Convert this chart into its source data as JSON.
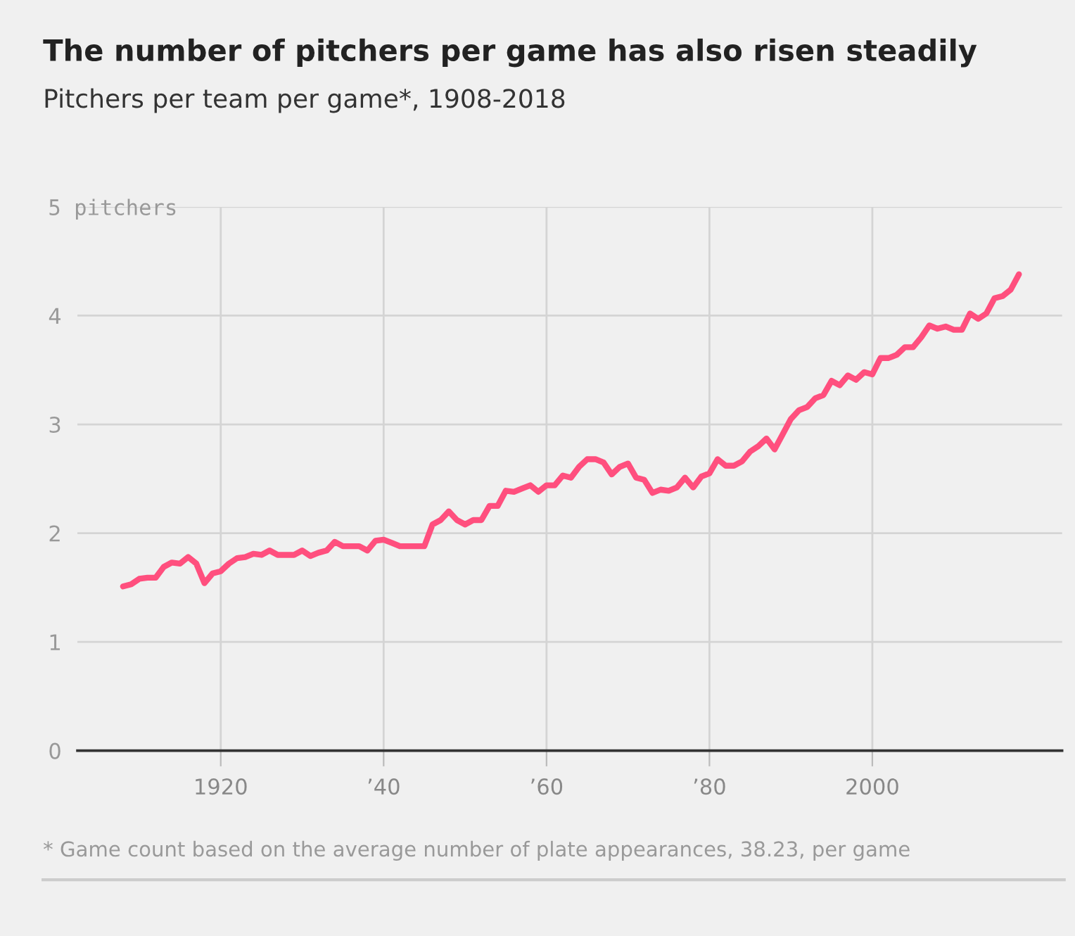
{
  "chart_data": {
    "type": "line",
    "title": "The number of pitchers per game has also risen steadily",
    "subtitle": "Pitchers per team per game*, 1908-2018",
    "annotations": [
      "* Game count based on the average number of plate appearances, 38.23, per game"
    ],
    "x": [
      1908,
      1909,
      1910,
      1911,
      1912,
      1913,
      1914,
      1915,
      1916,
      1917,
      1918,
      1919,
      1920,
      1921,
      1922,
      1923,
      1924,
      1925,
      1926,
      1927,
      1928,
      1929,
      1930,
      1931,
      1932,
      1933,
      1934,
      1935,
      1936,
      1937,
      1938,
      1939,
      1940,
      1941,
      1942,
      1943,
      1944,
      1945,
      1946,
      1947,
      1948,
      1949,
      1950,
      1951,
      1952,
      1953,
      1954,
      1955,
      1956,
      1957,
      1958,
      1959,
      1960,
      1961,
      1962,
      1963,
      1964,
      1965,
      1966,
      1967,
      1968,
      1969,
      1970,
      1971,
      1972,
      1973,
      1974,
      1975,
      1976,
      1977,
      1978,
      1979,
      1980,
      1981,
      1982,
      1983,
      1984,
      1985,
      1986,
      1987,
      1988,
      1989,
      1990,
      1991,
      1992,
      1993,
      1994,
      1995,
      1996,
      1997,
      1998,
      1999,
      2000,
      2001,
      2002,
      2003,
      2004,
      2005,
      2006,
      2007,
      2008,
      2009,
      2010,
      2011,
      2012,
      2013,
      2014,
      2015,
      2016,
      2017,
      2018
    ],
    "series": [
      {
        "color": "#ff4f7e",
        "values": [
          1.51,
          1.53,
          1.58,
          1.59,
          1.59,
          1.69,
          1.73,
          1.72,
          1.78,
          1.72,
          1.54,
          1.63,
          1.65,
          1.72,
          1.77,
          1.78,
          1.81,
          1.8,
          1.84,
          1.8,
          1.8,
          1.8,
          1.84,
          1.79,
          1.82,
          1.84,
          1.92,
          1.88,
          1.88,
          1.88,
          1.84,
          1.93,
          1.94,
          1.91,
          1.88,
          1.88,
          1.88,
          1.88,
          2.08,
          2.12,
          2.2,
          2.12,
          2.08,
          2.12,
          2.12,
          2.25,
          2.25,
          2.39,
          2.38,
          2.41,
          2.44,
          2.38,
          2.44,
          2.44,
          2.53,
          2.51,
          2.61,
          2.68,
          2.68,
          2.65,
          2.54,
          2.61,
          2.64,
          2.51,
          2.49,
          2.37,
          2.4,
          2.39,
          2.42,
          2.51,
          2.42,
          2.52,
          2.55,
          2.68,
          2.62,
          2.62,
          2.66,
          2.75,
          2.8,
          2.87,
          2.77,
          2.91,
          3.05,
          3.13,
          3.16,
          3.24,
          3.27,
          3.4,
          3.36,
          3.45,
          3.41,
          3.48,
          3.46,
          3.61,
          3.61,
          3.64,
          3.71,
          3.71,
          3.8,
          3.91,
          3.88,
          3.9,
          3.87,
          3.87,
          4.02,
          3.97,
          4.02,
          4.16,
          4.18,
          4.24,
          4.38
        ]
      }
    ],
    "xlim": [
      1902.4,
      2023.3
    ],
    "ylim": [
      0,
      5
    ],
    "xticks": [
      {
        "value": 1920,
        "label": "1920"
      },
      {
        "value": 1940,
        "label": "’40"
      },
      {
        "value": 1960,
        "label": "’60"
      },
      {
        "value": 1980,
        "label": "’80"
      },
      {
        "value": 2000,
        "label": "2000"
      }
    ],
    "yticks": [
      0,
      1,
      2,
      3,
      4,
      {
        "value": 5,
        "label": "5 pitchers"
      }
    ],
    "grid": true,
    "legend": false,
    "marker": "none",
    "line_style": "solid"
  }
}
